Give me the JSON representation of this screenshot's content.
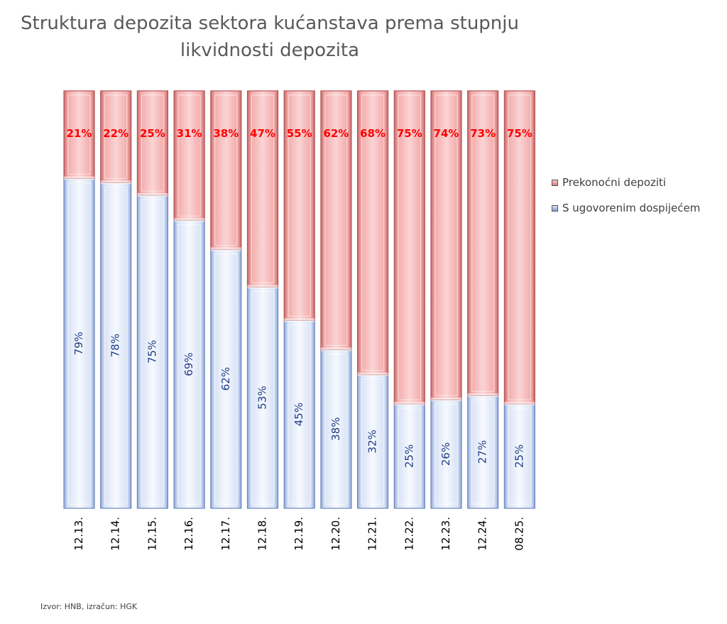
{
  "chart_data": {
    "type": "bar",
    "stacked": true,
    "orientation": "vertical",
    "title": "Struktura depozita sektora kućanstava prema stupnju likvidnosti depozita",
    "title_lines": [
      "Struktura depozita sektora kućanstava prema stupnju",
      "likvidnosti depozita"
    ],
    "categories": [
      "12.13.",
      "12.14.",
      "12.15.",
      "12.16.",
      "12.17.",
      "12.18.",
      "12.19.",
      "12.20.",
      "12.21.",
      "12.22.",
      "12.23.",
      "12.24.",
      "08.25."
    ],
    "series": [
      {
        "name": "S ugovorenim dospijećem",
        "values": [
          79,
          78,
          75,
          69,
          62,
          53,
          45,
          38,
          32,
          25,
          26,
          27,
          25
        ],
        "labels": [
          "79%",
          "78%",
          "75%",
          "69%",
          "62%",
          "53%",
          "45%",
          "38%",
          "32%",
          "25%",
          "26%",
          "27%",
          "25%"
        ],
        "color": "#c9d6f0",
        "label_color": "#1f3c88"
      },
      {
        "name": "Prekonoćni depoziti",
        "values": [
          21,
          22,
          25,
          31,
          38,
          47,
          55,
          62,
          68,
          75,
          74,
          73,
          75
        ],
        "labels": [
          "21%",
          "22%",
          "25%",
          "31%",
          "38%",
          "47%",
          "55%",
          "62%",
          "68%",
          "75%",
          "74%",
          "73%",
          "75%"
        ],
        "color": "#f2a3a3",
        "label_color": "#ff0000"
      }
    ],
    "ylim": [
      0,
      100
    ],
    "legend_position": "right",
    "xlabel": "",
    "ylabel": ""
  },
  "legend": {
    "items": [
      {
        "label": "Prekonoćni depoziti"
      },
      {
        "label": "S ugovorenim dospijećem"
      }
    ]
  },
  "source": "Izvor: HNB, izračun: HGK"
}
